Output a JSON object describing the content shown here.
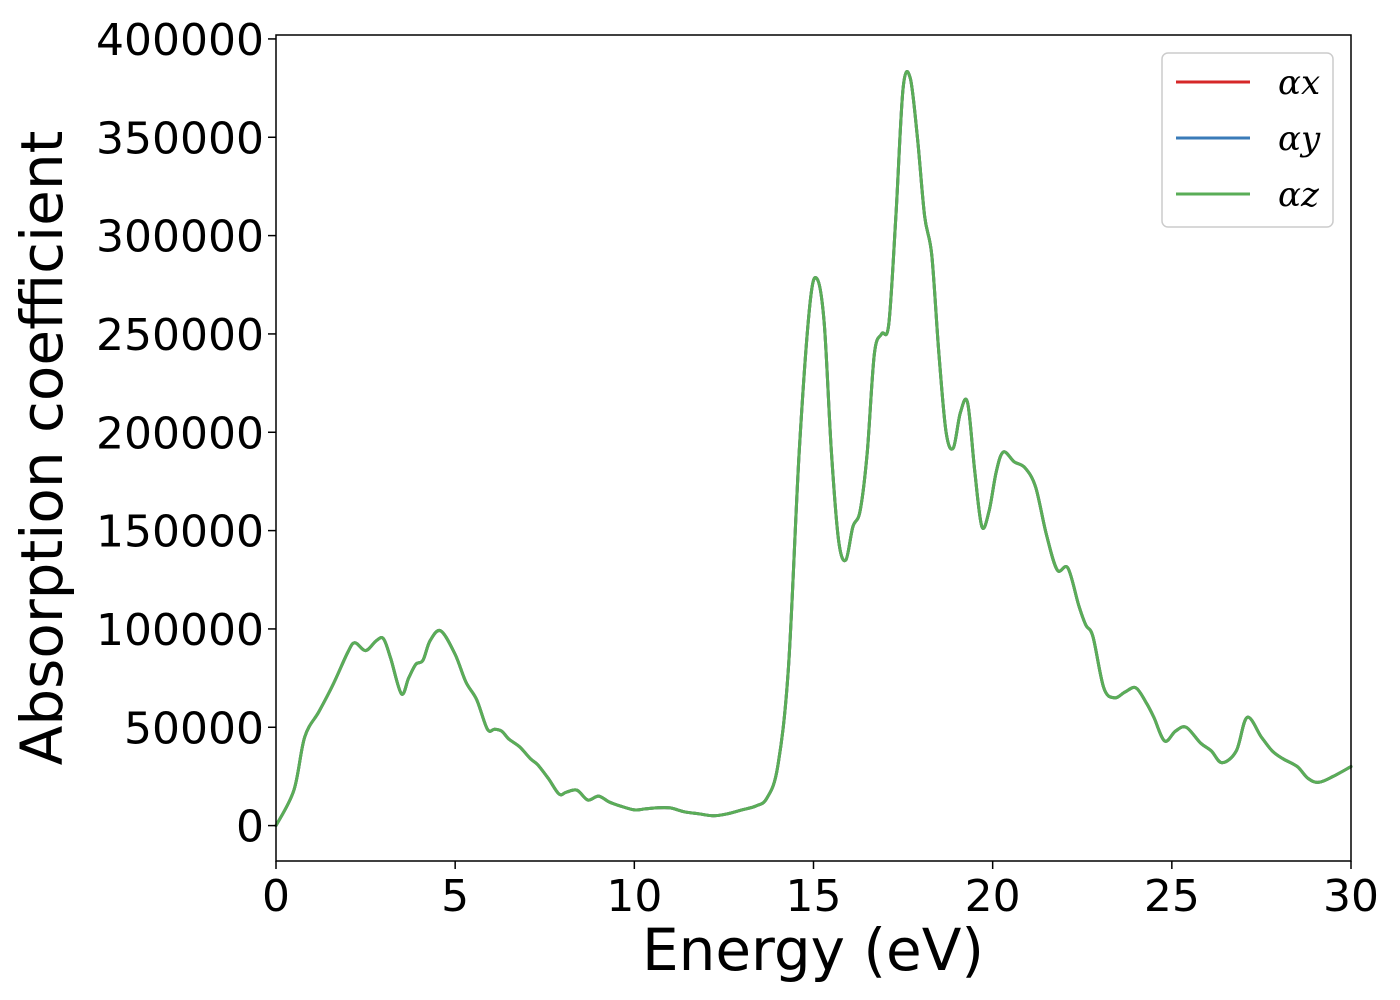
{
  "chart_data": {
    "type": "line",
    "title": "",
    "xlabel": "Energy (eV)",
    "ylabel": "Absorption coefficient",
    "xlim": [
      0,
      30
    ],
    "ylim": [
      -18000,
      402000
    ],
    "xticks": [
      0,
      5,
      10,
      15,
      20,
      25,
      30
    ],
    "xtick_labels": [
      "0",
      "5",
      "10",
      "15",
      "20",
      "25",
      "30"
    ],
    "yticks": [
      0,
      50000,
      100000,
      150000,
      200000,
      250000,
      300000,
      350000,
      400000
    ],
    "ytick_labels": [
      "0",
      "50000",
      "100000",
      "150000",
      "200000",
      "250000",
      "300000",
      "350000",
      "400000"
    ],
    "grid": false,
    "legend_position": "top-right",
    "x": [
      0,
      0.5,
      0.8,
      1.2,
      1.6,
      2.0,
      2.2,
      2.5,
      2.8,
      3.0,
      3.2,
      3.5,
      3.7,
      3.9,
      4.1,
      4.3,
      4.6,
      5.0,
      5.3,
      5.6,
      5.9,
      6.1,
      6.3,
      6.5,
      6.8,
      7.1,
      7.3,
      7.6,
      7.9,
      8.1,
      8.4,
      8.7,
      9.0,
      9.3,
      9.6,
      10.0,
      10.3,
      10.6,
      11.0,
      11.4,
      11.8,
      12.2,
      12.6,
      13.0,
      13.4,
      13.7,
      14.0,
      14.3,
      14.6,
      14.9,
      15.1,
      15.3,
      15.5,
      15.7,
      15.9,
      16.1,
      16.3,
      16.5,
      16.7,
      16.9,
      17.1,
      17.3,
      17.5,
      17.7,
      17.9,
      18.1,
      18.3,
      18.5,
      18.7,
      18.9,
      19.1,
      19.3,
      19.5,
      19.7,
      19.9,
      20.1,
      20.3,
      20.6,
      20.9,
      21.2,
      21.5,
      21.8,
      22.1,
      22.4,
      22.6,
      22.8,
      23.1,
      23.4,
      23.7,
      24.0,
      24.3,
      24.5,
      24.8,
      25.1,
      25.4,
      25.8,
      26.1,
      26.4,
      26.8,
      27.1,
      27.5,
      27.8,
      28.1,
      28.5,
      28.8,
      29.1,
      29.5,
      30.0
    ],
    "series": [
      {
        "name": "αx",
        "color": "#d62728",
        "values": [
          0,
          18000,
          45000,
          58000,
          72000,
          88000,
          93000,
          89000,
          94000,
          95000,
          85000,
          67000,
          75000,
          82000,
          84000,
          94000,
          99000,
          87000,
          73000,
          64000,
          49000,
          49000,
          48000,
          44000,
          40000,
          34000,
          31000,
          24000,
          16000,
          17000,
          18000,
          13000,
          15000,
          12000,
          10000,
          8000,
          8500,
          9000,
          9000,
          7000,
          6000,
          5000,
          6000,
          8000,
          10000,
          14000,
          30000,
          80000,
          190000,
          265000,
          278000,
          255000,
          190000,
          145000,
          135000,
          152000,
          160000,
          190000,
          240000,
          250000,
          255000,
          310000,
          375000,
          380000,
          350000,
          310000,
          290000,
          240000,
          200000,
          192000,
          210000,
          215000,
          180000,
          152000,
          160000,
          180000,
          190000,
          185000,
          182000,
          172000,
          148000,
          130000,
          131000,
          112000,
          102000,
          96000,
          70000,
          65000,
          68000,
          70000,
          62000,
          55000,
          43000,
          48000,
          50000,
          42000,
          38000,
          32000,
          38000,
          55000,
          45000,
          38000,
          34000,
          30000,
          24000,
          22000,
          25000,
          30000
        ]
      },
      {
        "name": "αy",
        "color": "#3a7bb8",
        "values": [
          0,
          18000,
          45000,
          58000,
          72000,
          88000,
          93000,
          89000,
          94000,
          95000,
          85000,
          67000,
          75000,
          82000,
          84000,
          94000,
          99000,
          87000,
          73000,
          64000,
          49000,
          49000,
          48000,
          44000,
          40000,
          34000,
          31000,
          24000,
          16000,
          17000,
          18000,
          13000,
          15000,
          12000,
          10000,
          8000,
          8500,
          9000,
          9000,
          7000,
          6000,
          5000,
          6000,
          8000,
          10000,
          14000,
          30000,
          80000,
          190000,
          265000,
          278000,
          255000,
          190000,
          145000,
          135000,
          152000,
          160000,
          190000,
          240000,
          250000,
          255000,
          310000,
          375000,
          380000,
          350000,
          310000,
          290000,
          240000,
          200000,
          192000,
          210000,
          215000,
          180000,
          152000,
          160000,
          180000,
          190000,
          185000,
          182000,
          172000,
          148000,
          130000,
          131000,
          112000,
          102000,
          96000,
          70000,
          65000,
          68000,
          70000,
          62000,
          55000,
          43000,
          48000,
          50000,
          42000,
          38000,
          32000,
          38000,
          55000,
          45000,
          38000,
          34000,
          30000,
          24000,
          22000,
          25000,
          30000
        ]
      },
      {
        "name": "αz",
        "color": "#5aad57",
        "values": [
          0,
          18000,
          45000,
          58000,
          72000,
          88000,
          93000,
          89000,
          94000,
          95000,
          85000,
          67000,
          75000,
          82000,
          84000,
          94000,
          99000,
          87000,
          73000,
          64000,
          49000,
          49000,
          48000,
          44000,
          40000,
          34000,
          31000,
          24000,
          16000,
          17000,
          18000,
          13000,
          15000,
          12000,
          10000,
          8000,
          8500,
          9000,
          9000,
          7000,
          6000,
          5000,
          6000,
          8000,
          10000,
          14000,
          30000,
          80000,
          190000,
          265000,
          278000,
          255000,
          190000,
          145000,
          135000,
          152000,
          160000,
          190000,
          240000,
          250000,
          255000,
          310000,
          375000,
          380000,
          350000,
          310000,
          290000,
          240000,
          200000,
          192000,
          210000,
          215000,
          180000,
          152000,
          160000,
          180000,
          190000,
          185000,
          182000,
          172000,
          148000,
          130000,
          131000,
          112000,
          102000,
          96000,
          70000,
          65000,
          68000,
          70000,
          62000,
          55000,
          43000,
          48000,
          50000,
          42000,
          38000,
          32000,
          38000,
          55000,
          45000,
          38000,
          34000,
          30000,
          24000,
          22000,
          25000,
          30000
        ]
      }
    ]
  }
}
